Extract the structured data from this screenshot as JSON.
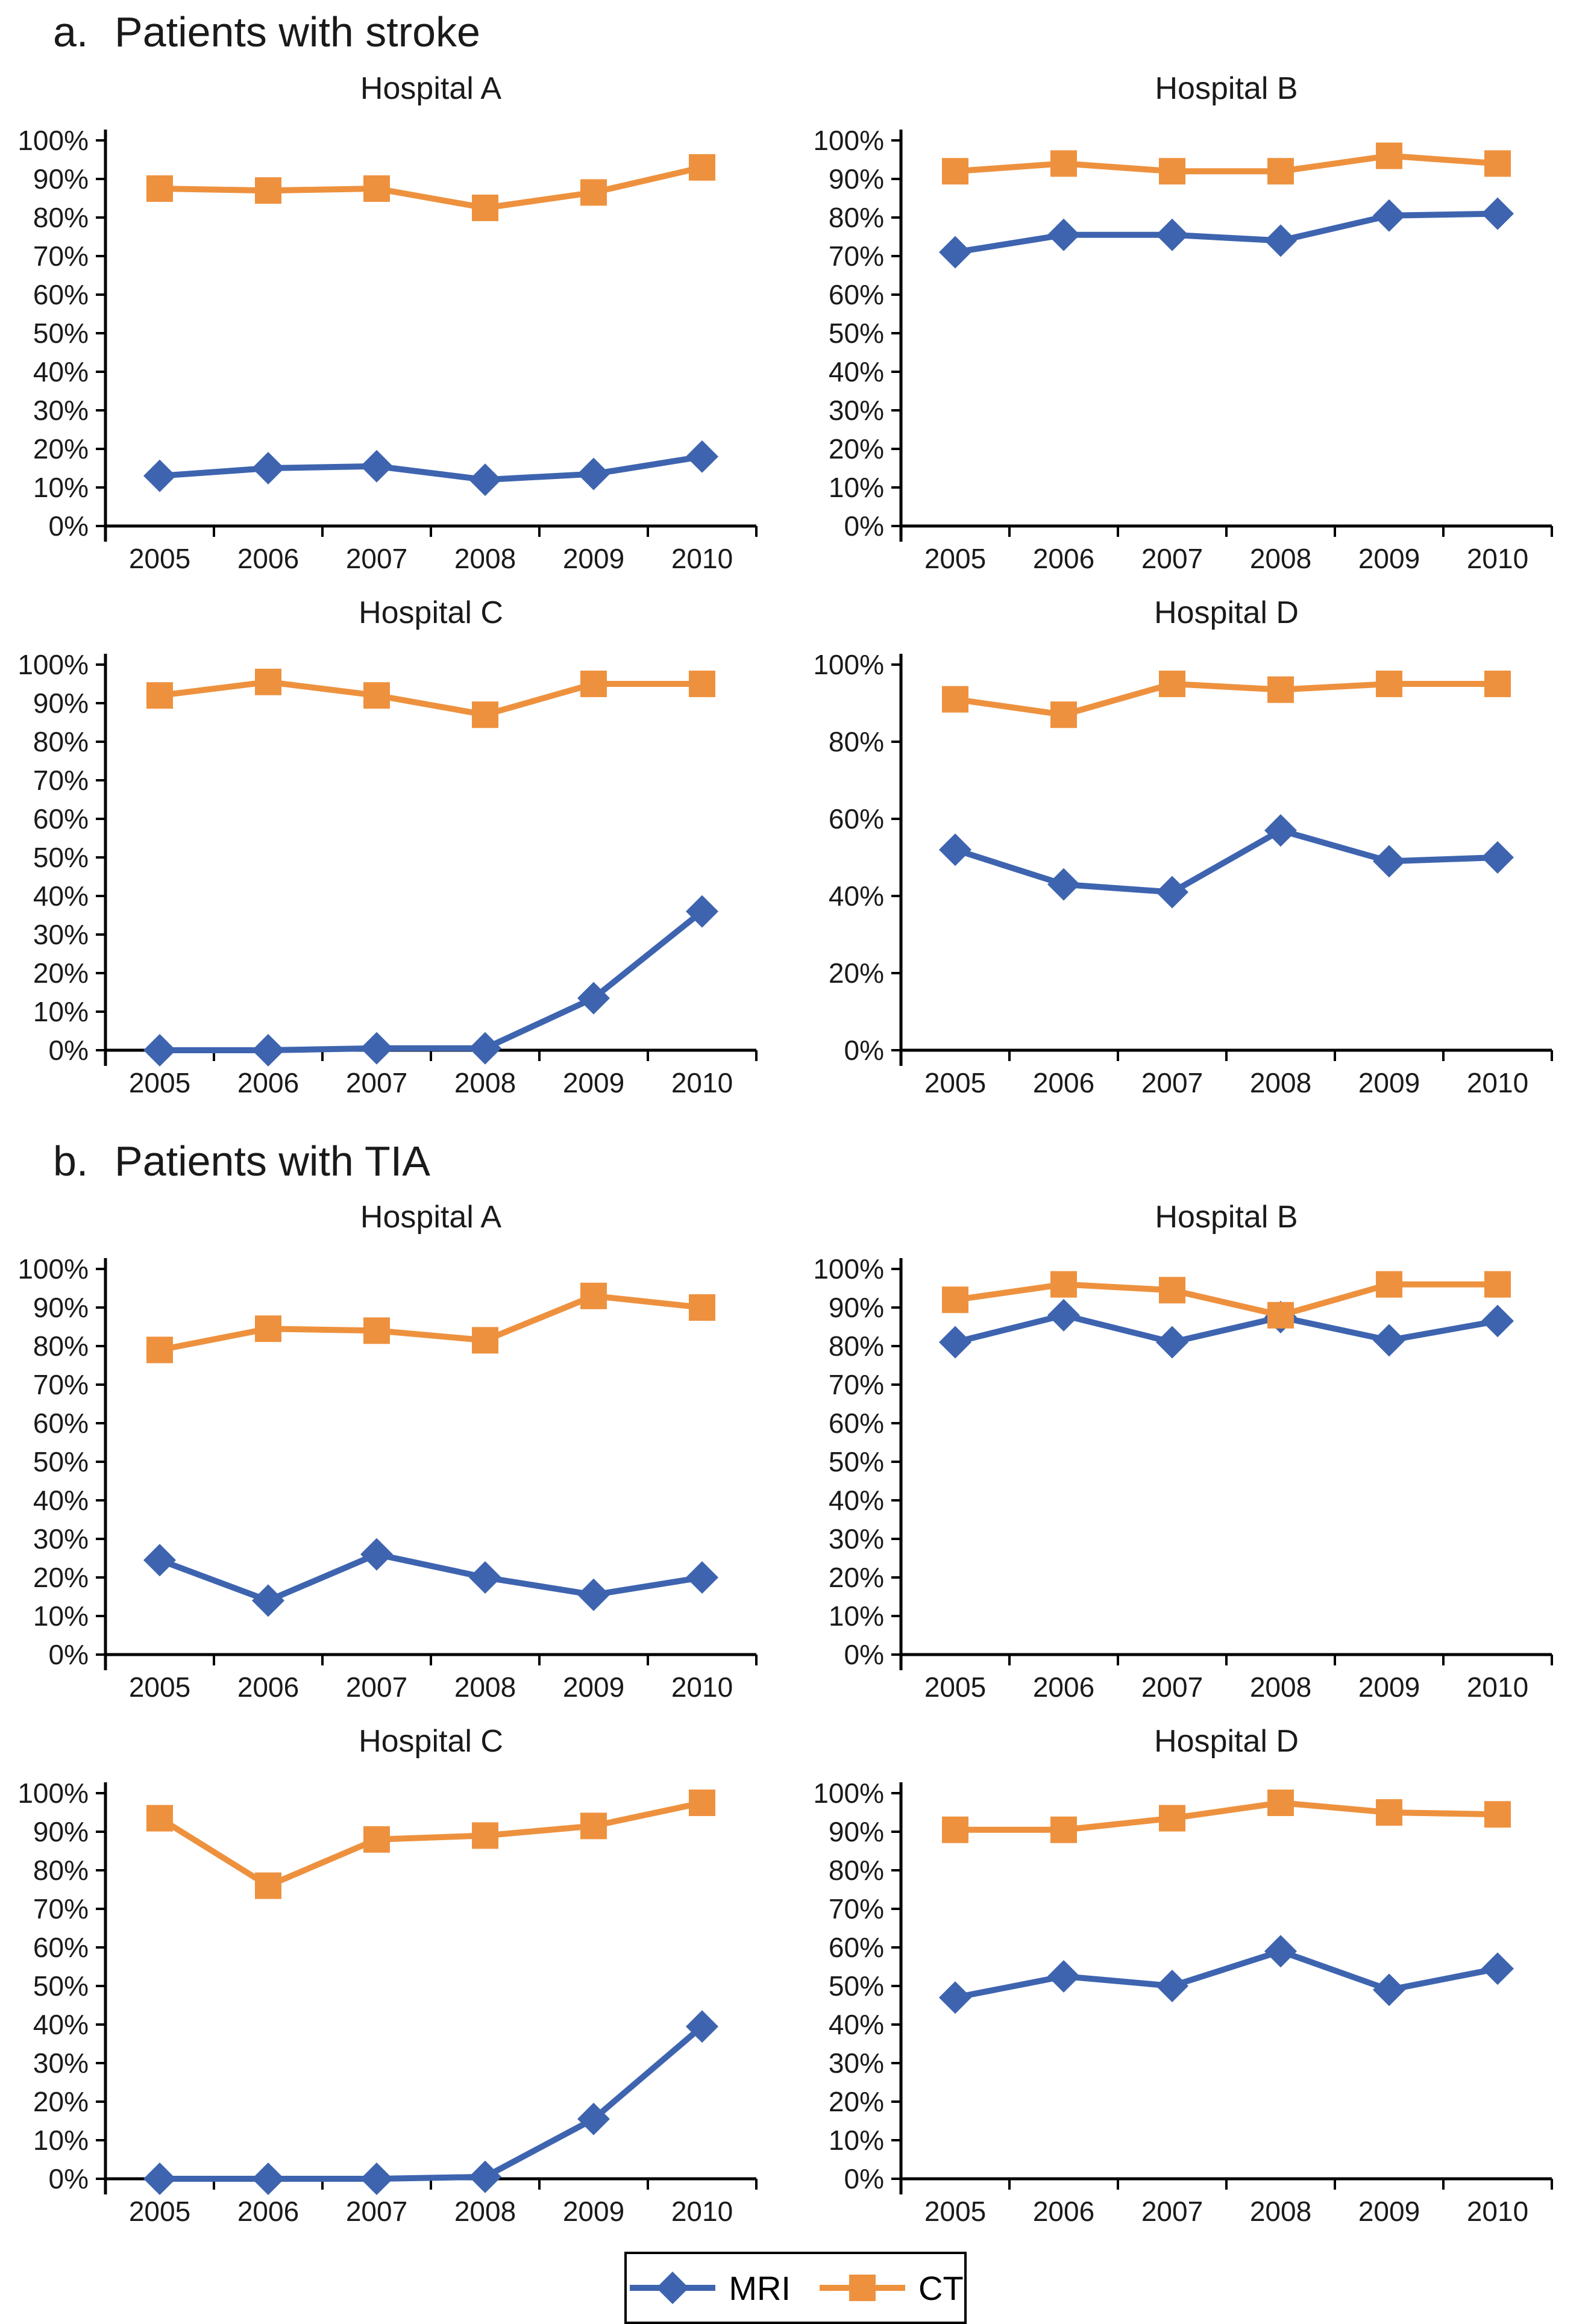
{
  "sections": [
    {
      "label": "a.",
      "title": "Patients with stroke"
    },
    {
      "label": "b.",
      "title": "Patients with TIA"
    }
  ],
  "colors": {
    "MRI": "#3E64AF",
    "CT": "#EE913E",
    "axis": "#000000"
  },
  "legend": {
    "position": "bottom-center",
    "items": [
      {
        "label": "MRI",
        "marker": "diamond",
        "color": "#3E64AF"
      },
      {
        "label": "CT",
        "marker": "square",
        "color": "#EE913E"
      }
    ]
  },
  "chart_data": [
    {
      "type": "line",
      "section": "a",
      "title": "Hospital A",
      "categories": [
        "2005",
        "2006",
        "2007",
        "2008",
        "2009",
        "2010"
      ],
      "xlabel": "",
      "ylabel": "",
      "ylim": [
        0,
        100
      ],
      "y_tick_step": 10,
      "grid": false,
      "series": [
        {
          "name": "MRI",
          "marker": "diamond",
          "values": [
            13,
            15,
            15.5,
            12,
            13.5,
            18
          ]
        },
        {
          "name": "CT",
          "marker": "square",
          "values": [
            87.5,
            87,
            87.5,
            82.5,
            86.5,
            93
          ]
        }
      ]
    },
    {
      "type": "line",
      "section": "a",
      "title": "Hospital B",
      "categories": [
        "2005",
        "2006",
        "2007",
        "2008",
        "2009",
        "2010"
      ],
      "xlabel": "",
      "ylabel": "",
      "ylim": [
        0,
        100
      ],
      "y_tick_step": 10,
      "grid": false,
      "series": [
        {
          "name": "MRI",
          "marker": "diamond",
          "values": [
            71,
            75.5,
            75.5,
            74,
            80.5,
            81
          ]
        },
        {
          "name": "CT",
          "marker": "square",
          "values": [
            92,
            94,
            92,
            92,
            96,
            94
          ]
        }
      ]
    },
    {
      "type": "line",
      "section": "a",
      "title": "Hospital C",
      "categories": [
        "2005",
        "2006",
        "2007",
        "2008",
        "2009",
        "2010"
      ],
      "xlabel": "",
      "ylabel": "",
      "ylim": [
        0,
        100
      ],
      "y_tick_step": 10,
      "grid": false,
      "series": [
        {
          "name": "MRI",
          "marker": "diamond",
          "values": [
            0,
            0,
            0.5,
            0.5,
            13.5,
            36
          ]
        },
        {
          "name": "CT",
          "marker": "square",
          "values": [
            92,
            95.5,
            92,
            87,
            95,
            95
          ]
        }
      ]
    },
    {
      "type": "line",
      "section": "a",
      "title": "Hospital D",
      "categories": [
        "2005",
        "2006",
        "2007",
        "2008",
        "2009",
        "2010"
      ],
      "xlabel": "",
      "ylabel": "",
      "ylim": [
        0,
        100
      ],
      "y_tick_step": 20,
      "grid": false,
      "series": [
        {
          "name": "MRI",
          "marker": "diamond",
          "values": [
            52,
            43,
            41,
            57,
            49,
            50
          ]
        },
        {
          "name": "CT",
          "marker": "square",
          "values": [
            91,
            87,
            95,
            93.5,
            95,
            95
          ]
        }
      ]
    },
    {
      "type": "line",
      "section": "b",
      "title": "Hospital A",
      "categories": [
        "2005",
        "2006",
        "2007",
        "2008",
        "2009",
        "2010"
      ],
      "xlabel": "",
      "ylabel": "",
      "ylim": [
        0,
        100
      ],
      "y_tick_step": 10,
      "grid": false,
      "series": [
        {
          "name": "MRI",
          "marker": "diamond",
          "values": [
            24.5,
            14,
            26,
            20,
            15.5,
            20
          ]
        },
        {
          "name": "CT",
          "marker": "square",
          "values": [
            79,
            84.5,
            84,
            81.5,
            93,
            90
          ]
        }
      ]
    },
    {
      "type": "line",
      "section": "b",
      "title": "Hospital B",
      "categories": [
        "2005",
        "2006",
        "2007",
        "2008",
        "2009",
        "2010"
      ],
      "xlabel": "",
      "ylabel": "",
      "ylim": [
        0,
        100
      ],
      "y_tick_step": 10,
      "grid": false,
      "series": [
        {
          "name": "MRI",
          "marker": "diamond",
          "values": [
            81,
            88,
            81,
            87.5,
            81.5,
            86.5
          ]
        },
        {
          "name": "CT",
          "marker": "square",
          "values": [
            92,
            96,
            94.5,
            88,
            96,
            96
          ]
        }
      ]
    },
    {
      "type": "line",
      "section": "b",
      "title": "Hospital C",
      "categories": [
        "2005",
        "2006",
        "2007",
        "2008",
        "2009",
        "2010"
      ],
      "xlabel": "",
      "ylabel": "",
      "ylim": [
        0,
        100
      ],
      "y_tick_step": 10,
      "grid": false,
      "series": [
        {
          "name": "MRI",
          "marker": "diamond",
          "values": [
            0,
            0,
            0,
            0.5,
            15.5,
            39.5
          ]
        },
        {
          "name": "CT",
          "marker": "square",
          "values": [
            93.5,
            76,
            88,
            89,
            91.5,
            97.5
          ]
        }
      ]
    },
    {
      "type": "line",
      "section": "b",
      "title": "Hospital D",
      "categories": [
        "2005",
        "2006",
        "2007",
        "2008",
        "2009",
        "2010"
      ],
      "xlabel": "",
      "ylabel": "",
      "ylim": [
        0,
        100
      ],
      "y_tick_step": 10,
      "grid": false,
      "series": [
        {
          "name": "MRI",
          "marker": "diamond",
          "values": [
            47,
            52.5,
            50,
            59,
            49,
            54.5
          ]
        },
        {
          "name": "CT",
          "marker": "square",
          "values": [
            90.5,
            90.5,
            93.5,
            97.5,
            95,
            94.5
          ]
        }
      ]
    }
  ]
}
